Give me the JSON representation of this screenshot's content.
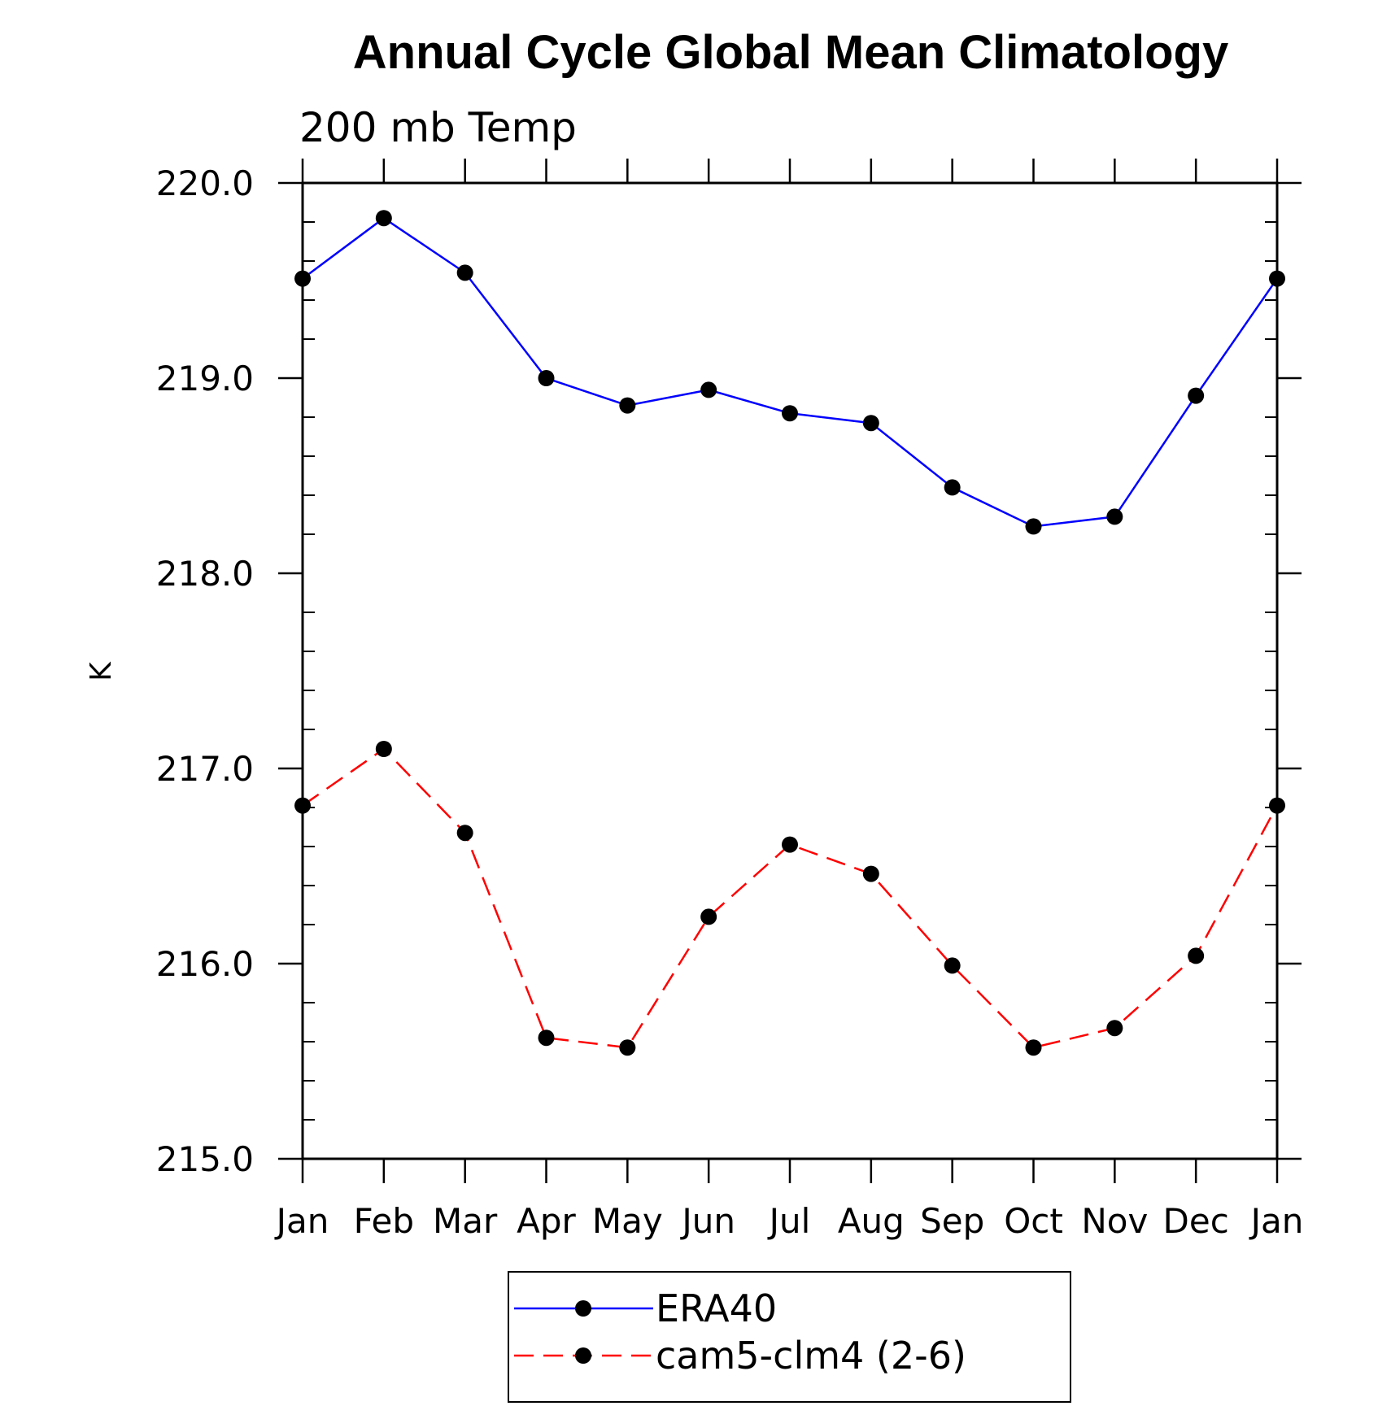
{
  "chart_data": {
    "type": "line",
    "title": "Annual Cycle Global Mean Climatology",
    "subtitle": "200 mb Temp",
    "xlabel": "",
    "ylabel": "K",
    "categories": [
      "Jan",
      "Feb",
      "Mar",
      "Apr",
      "May",
      "Jun",
      "Jul",
      "Aug",
      "Sep",
      "Oct",
      "Nov",
      "Dec",
      "Jan"
    ],
    "ylim": [
      215.0,
      220.0
    ],
    "y_ticks": [
      "215.0",
      "216.0",
      "217.0",
      "218.0",
      "219.0",
      "220.0"
    ],
    "y_tick_values": [
      215.0,
      216.0,
      217.0,
      218.0,
      219.0,
      220.0
    ],
    "grid": false,
    "legend_position": "bottom-center",
    "series": [
      {
        "name": "ERA40",
        "color": "#0000ff",
        "line_style": "solid",
        "marker": "filled-circle",
        "values": [
          219.51,
          219.82,
          219.54,
          219.0,
          218.86,
          218.94,
          218.82,
          218.77,
          218.44,
          218.24,
          218.29,
          218.91,
          219.51
        ]
      },
      {
        "name": "cam5-clm4 (2-6)",
        "color": "#ff0000",
        "line_style": "dashed",
        "marker": "filled-circle",
        "values": [
          216.81,
          217.1,
          216.67,
          215.62,
          215.57,
          216.24,
          216.61,
          216.46,
          215.99,
          215.57,
          215.67,
          216.04,
          216.81
        ]
      }
    ]
  }
}
